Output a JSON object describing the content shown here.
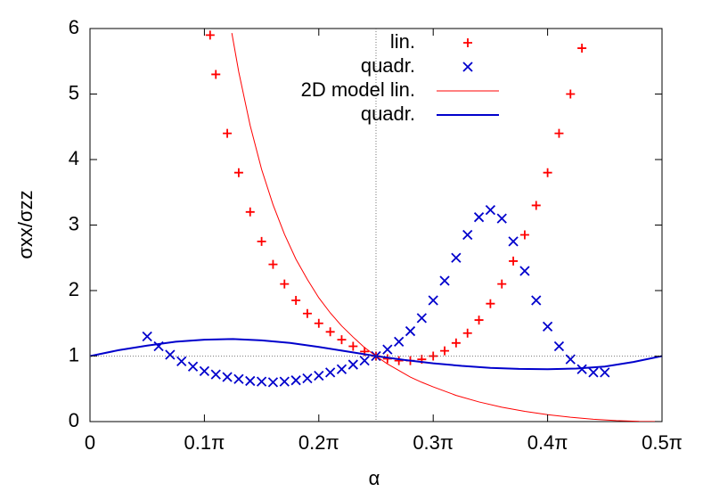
{
  "chart_data": {
    "type": "line",
    "xlabel": "α",
    "ylabel": "σxx/σzz",
    "xlim": [
      0,
      0.5
    ],
    "ylim": [
      0,
      6
    ],
    "xticks": [
      0,
      {
        "value": 0.1,
        "label": "0.1π"
      },
      {
        "value": 0.2,
        "label": "0.2π"
      },
      {
        "value": 0.3,
        "label": "0.3π"
      },
      {
        "value": 0.4,
        "label": "0.4π"
      },
      {
        "value": 0.5,
        "label": "0.5π"
      }
    ],
    "yticks": [
      0,
      1,
      2,
      3,
      4,
      5,
      6
    ],
    "vlines": [
      0.25
    ],
    "hlines": [
      1
    ],
    "legend": "top-right",
    "series": [
      {
        "name": "lin.",
        "type": "scatter",
        "marker": "+",
        "color": "#ff0000",
        "x": [
          0.105,
          0.11,
          0.12,
          0.13,
          0.14,
          0.15,
          0.16,
          0.17,
          0.18,
          0.19,
          0.2,
          0.21,
          0.22,
          0.23,
          0.24,
          0.25,
          0.26,
          0.27,
          0.28,
          0.29,
          0.3,
          0.31,
          0.32,
          0.33,
          0.34,
          0.35,
          0.36,
          0.37,
          0.38,
          0.39,
          0.4,
          0.41,
          0.42,
          0.43
        ],
        "values": [
          5.9,
          5.3,
          4.4,
          3.8,
          3.2,
          2.75,
          2.4,
          2.1,
          1.85,
          1.65,
          1.5,
          1.37,
          1.25,
          1.15,
          1.07,
          1.0,
          0.96,
          0.93,
          0.93,
          0.95,
          1.0,
          1.08,
          1.2,
          1.35,
          1.55,
          1.8,
          2.1,
          2.45,
          2.85,
          3.3,
          3.8,
          4.4,
          5.0,
          5.7
        ]
      },
      {
        "name": "quadr.",
        "type": "scatter",
        "marker": "x",
        "color": "#0000cc",
        "x": [
          0.05,
          0.06,
          0.07,
          0.08,
          0.09,
          0.1,
          0.11,
          0.12,
          0.13,
          0.14,
          0.15,
          0.16,
          0.17,
          0.18,
          0.19,
          0.2,
          0.21,
          0.22,
          0.23,
          0.24,
          0.25,
          0.26,
          0.27,
          0.28,
          0.29,
          0.3,
          0.31,
          0.32,
          0.33,
          0.34,
          0.35,
          0.36,
          0.37,
          0.38,
          0.39,
          0.4,
          0.41,
          0.42,
          0.43,
          0.44,
          0.45
        ],
        "values": [
          1.3,
          1.15,
          1.02,
          0.92,
          0.84,
          0.77,
          0.72,
          0.68,
          0.65,
          0.62,
          0.61,
          0.6,
          0.61,
          0.63,
          0.66,
          0.7,
          0.75,
          0.8,
          0.87,
          0.93,
          1.0,
          1.1,
          1.22,
          1.38,
          1.58,
          1.85,
          2.15,
          2.5,
          2.85,
          3.12,
          3.23,
          3.1,
          2.75,
          2.3,
          1.85,
          1.45,
          1.15,
          0.95,
          0.8,
          0.75,
          0.75
        ]
      },
      {
        "name": "2D model lin.",
        "type": "line",
        "width": 1,
        "color": "#ff0000",
        "x": [
          0.124,
          0.13,
          0.14,
          0.15,
          0.16,
          0.17,
          0.18,
          0.19,
          0.2,
          0.21,
          0.22,
          0.23,
          0.24,
          0.25,
          0.26,
          0.27,
          0.28,
          0.29,
          0.3,
          0.32,
          0.34,
          0.36,
          0.38,
          0.4,
          0.42,
          0.44,
          0.46,
          0.48,
          0.5
        ],
        "values": [
          5.93,
          5.34,
          4.52,
          3.85,
          3.31,
          2.86,
          2.48,
          2.17,
          1.89,
          1.66,
          1.46,
          1.29,
          1.13,
          1,
          0.88,
          0.78,
          0.68,
          0.6,
          0.53,
          0.4,
          0.3,
          0.22,
          0.157,
          0.106,
          0.066,
          0.036,
          0.016,
          0.004,
          0
        ]
      },
      {
        "name": "quadr.",
        "type": "line",
        "width": 2,
        "color": "#0000cc",
        "x": [
          0,
          0.025,
          0.05,
          0.075,
          0.1,
          0.125,
          0.15,
          0.175,
          0.2,
          0.225,
          0.25,
          0.275,
          0.3,
          0.325,
          0.35,
          0.375,
          0.4,
          0.425,
          0.45,
          0.475,
          0.5
        ],
        "values": [
          1,
          1.09,
          1.16,
          1.22,
          1.25,
          1.26,
          1.24,
          1.2,
          1.14,
          1.07,
          1.0,
          0.94,
          0.89,
          0.85,
          0.82,
          0.805,
          0.8,
          0.81,
          0.84,
          0.91,
          1.0
        ]
      }
    ]
  }
}
